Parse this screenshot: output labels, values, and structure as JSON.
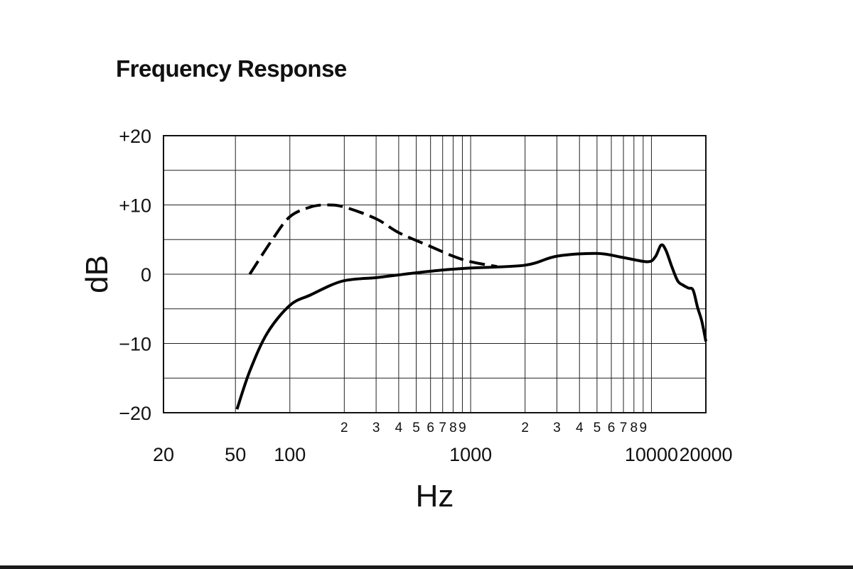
{
  "chart_data": {
    "type": "line",
    "title": "Frequency Response",
    "xlabel": "Hz",
    "ylabel": "dB",
    "x_scale": "log",
    "xlim": [
      20,
      20000
    ],
    "ylim": [
      -20,
      20
    ],
    "grid": true,
    "y_ticks": [
      {
        "value": 20,
        "label": "+20"
      },
      {
        "value": 10,
        "label": "+10"
      },
      {
        "value": 0,
        "label": "0"
      },
      {
        "value": -10,
        "label": "−10"
      },
      {
        "value": -20,
        "label": "−20"
      }
    ],
    "x_major_ticks": [
      {
        "value": 20,
        "label": "20"
      },
      {
        "value": 50,
        "label": "50"
      },
      {
        "value": 100,
        "label": "100"
      },
      {
        "value": 1000,
        "label": "1000"
      },
      {
        "value": 10000,
        "label": "10000"
      },
      {
        "value": 20000,
        "label": "20000"
      }
    ],
    "x_minor_ticks": [
      {
        "value": 200,
        "label": "2"
      },
      {
        "value": 300,
        "label": "3"
      },
      {
        "value": 400,
        "label": "4"
      },
      {
        "value": 500,
        "label": "5"
      },
      {
        "value": 600,
        "label": "6"
      },
      {
        "value": 700,
        "label": "7"
      },
      {
        "value": 800,
        "label": "8"
      },
      {
        "value": 900,
        "label": "9"
      },
      {
        "value": 2000,
        "label": "2"
      },
      {
        "value": 3000,
        "label": "3"
      },
      {
        "value": 4000,
        "label": "4"
      },
      {
        "value": 5000,
        "label": "5"
      },
      {
        "value": 6000,
        "label": "6"
      },
      {
        "value": 7000,
        "label": "7"
      },
      {
        "value": 8000,
        "label": "8"
      },
      {
        "value": 9000,
        "label": "9"
      }
    ],
    "grid_x": [
      50,
      100,
      200,
      300,
      400,
      500,
      600,
      700,
      800,
      900,
      1000,
      2000,
      3000,
      4000,
      5000,
      6000,
      7000,
      8000,
      9000,
      10000
    ],
    "grid_y": [
      -15,
      -10,
      -5,
      0,
      5,
      10,
      15
    ],
    "series": [
      {
        "style": "solid",
        "x": [
          51,
          60,
          75,
          100,
          130,
          195,
          300,
          400,
          500,
          700,
          1000,
          2000,
          3000,
          5000,
          7000,
          9500,
          10500,
          11300,
          12000,
          13000,
          14000,
          15000,
          16000,
          17000,
          18000,
          19000,
          20000
        ],
        "y": [
          -19.5,
          -14,
          -8.5,
          -4.5,
          -3,
          -1,
          -0.5,
          -0.1,
          0.2,
          0.6,
          0.9,
          1.3,
          2.6,
          3,
          2.4,
          1.8,
          2.5,
          4.2,
          3.5,
          1,
          -1,
          -1.6,
          -2,
          -2.3,
          -4.8,
          -6.8,
          -9.7
        ]
      },
      {
        "style": "dashed",
        "x": [
          60,
          80,
          100,
          130,
          160,
          200,
          300,
          400,
          600,
          800,
          1000,
          1400
        ],
        "y": [
          0,
          5,
          8.3,
          9.7,
          10,
          9.7,
          8,
          6,
          4,
          2.6,
          1.8,
          1.1
        ]
      }
    ]
  }
}
